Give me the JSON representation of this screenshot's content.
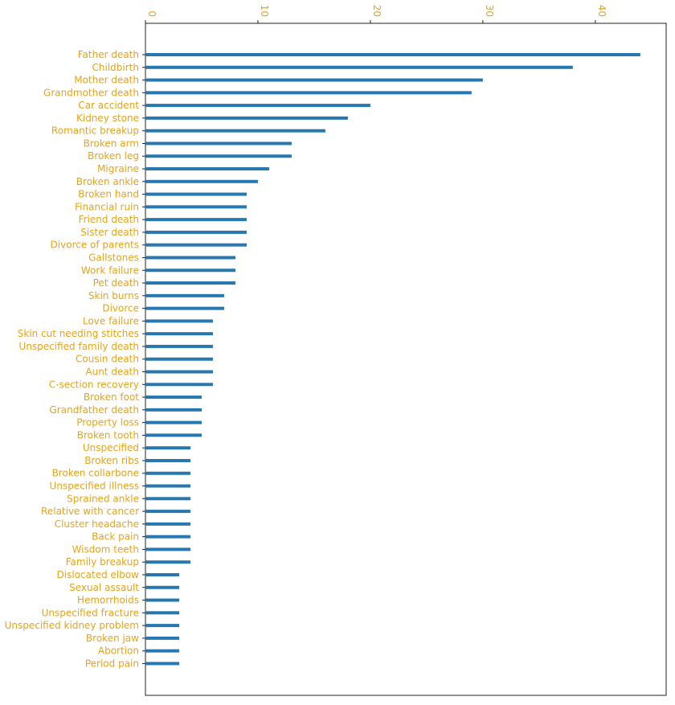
{
  "chart_data": {
    "type": "bar",
    "orientation": "horizontal",
    "title": "",
    "xlabel": "",
    "ylabel": "",
    "xlim": [
      0,
      46.3
    ],
    "x_ticks": [
      0,
      10,
      20,
      30,
      40
    ],
    "x_axis_position": "top",
    "grid": false,
    "bar_color": "#2778b0",
    "label_color": "#e8a317",
    "categories": [
      "Father death",
      "Childbirth",
      "Mother death",
      "Grandmother death",
      "Car accident",
      "Kidney stone",
      "Romantic breakup",
      "Broken arm",
      "Broken leg",
      "Migraine",
      "Broken ankle",
      "Broken hand",
      "Financial ruin",
      "Friend death",
      "Sister death",
      "Divorce of parents",
      "Gallstones",
      "Work failure",
      "Pet death",
      "Skin burns",
      "Divorce",
      "Love failure",
      "Skin cut needing stitches",
      "Unspecified family death",
      "Cousin death",
      "Aunt death",
      "C-section recovery",
      "Broken foot",
      "Grandfather death",
      "Property loss",
      "Broken tooth",
      "Unspecified",
      "Broken ribs",
      "Broken collarbone",
      "Unspecified illness",
      "Sprained ankle",
      "Relative with cancer",
      "Cluster headache",
      "Back pain",
      "Wisdom teeth",
      "Family breakup",
      "Dislocated elbow",
      "Sexual assault",
      "Hemorrhoids",
      "Unspecified fracture",
      "Unspecified kidney problem",
      "Broken jaw",
      "Abortion",
      "Period pain"
    ],
    "values": [
      44,
      38,
      30,
      29,
      20,
      18,
      16,
      13,
      13,
      11,
      10,
      9,
      9,
      9,
      9,
      9,
      8,
      8,
      8,
      7,
      7,
      6,
      6,
      6,
      6,
      6,
      6,
      5,
      5,
      5,
      5,
      4,
      4,
      4,
      4,
      4,
      4,
      4,
      4,
      4,
      4,
      3,
      3,
      3,
      3,
      3,
      3,
      3,
      3
    ]
  }
}
